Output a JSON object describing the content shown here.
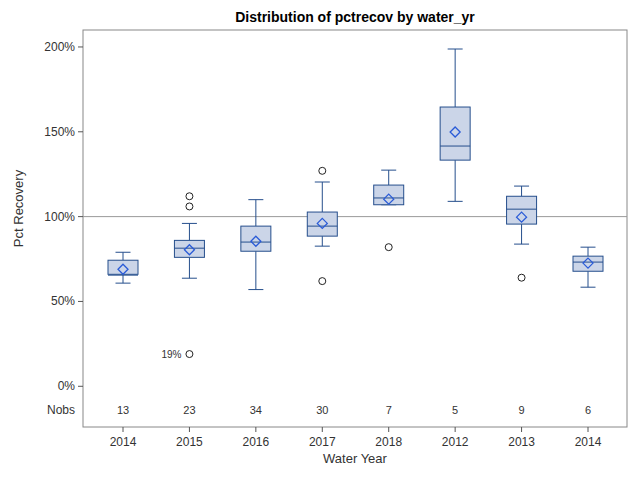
{
  "chart_data": {
    "type": "box",
    "title": "Distribution of pctrecov by water_yr",
    "x_label": "Water Year",
    "y_label": "Pct Recovery",
    "categories": [
      "2014",
      "2015",
      "2016",
      "2017",
      "2018",
      "2012",
      "2013",
      "2014"
    ],
    "color": "#cbd5e8",
    "grid": false,
    "ylim": [
      -24,
      210
    ],
    "yticks": [
      {
        "value": 0,
        "label": "0%"
      },
      {
        "value": 50,
        "label": "50%"
      },
      {
        "value": 100,
        "label": "100%"
      },
      {
        "value": 150,
        "label": "150%"
      },
      {
        "value": 200,
        "label": "200%"
      }
    ],
    "ref_line": 100,
    "nobs_label": "Nobs",
    "nobs": [
      13,
      23,
      34,
      30,
      7,
      5,
      9,
      6
    ],
    "boxes": [
      {
        "whisker_low": 60.8,
        "q1": 66,
        "median": 65.5,
        "q3": 74.3,
        "whisker_high": 79,
        "mean": 69,
        "outliers": []
      },
      {
        "whisker_low": 63.7,
        "q1": 76,
        "median": 81.4,
        "q3": 86,
        "whisker_high": 96,
        "mean": 80.5,
        "outliers": [
          112,
          106,
          19
        ],
        "outlier_labels": [
          null,
          null,
          "19%"
        ]
      },
      {
        "whisker_low": 57,
        "q1": 79.6,
        "median": 85,
        "q3": 94.4,
        "whisker_high": 110,
        "mean": 85.5,
        "outliers": []
      },
      {
        "whisker_low": 82.6,
        "q1": 88.5,
        "median": 94.4,
        "q3": 102.7,
        "whisker_high": 120.4,
        "mean": 96,
        "outliers": [
          127,
          62
        ]
      },
      {
        "whisker_low": 107,
        "q1": 107,
        "median": 111,
        "q3": 118.6,
        "whisker_high": 127.4,
        "mean": 110.3,
        "outliers": [
          82
        ]
      },
      {
        "whisker_low": 109,
        "q1": 133.3,
        "median": 141.6,
        "q3": 164.6,
        "whisker_high": 198.8,
        "mean": 149.9,
        "outliers": []
      },
      {
        "whisker_low": 83.8,
        "q1": 95.6,
        "median": 104.4,
        "q3": 112,
        "whisker_high": 118,
        "mean": 99.7,
        "outliers": [
          64
        ]
      },
      {
        "whisker_low": 58.4,
        "q1": 67.8,
        "median": 73.2,
        "q3": 76.7,
        "whisker_high": 82,
        "mean": 72.6,
        "outliers": []
      }
    ]
  }
}
